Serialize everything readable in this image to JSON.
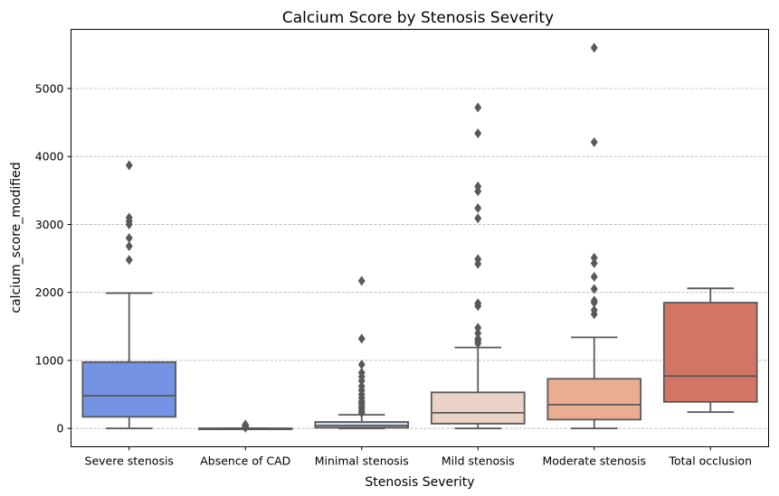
{
  "chart_data": {
    "type": "box",
    "title": "Calcium Score by Stenosis Severity",
    "xlabel": "Stenosis Severity",
    "ylabel": "calcium_score_modified",
    "ylim": [
      -270,
      5870
    ],
    "yticks": [
      0,
      1000,
      2000,
      3000,
      4000,
      5000
    ],
    "grid": "y-dashed",
    "categories": [
      "Severe stenosis",
      "Absence of CAD",
      "Minimal stenosis",
      "Mild stenosis",
      "Moderate stenosis",
      "Total occlusion"
    ],
    "colors": [
      "#7593e5",
      "#b7cdf3",
      "#cfd9e8",
      "#ead3c6",
      "#eaad92",
      "#d37564"
    ],
    "line_color": "#595959",
    "boxes": [
      {
        "category": "Severe stenosis",
        "whisker_low": 0,
        "q1": 170,
        "median": 480,
        "q3": 975,
        "whisker_high": 1990,
        "outliers": [
          2480,
          2680,
          2800,
          3000,
          3050,
          3100,
          3870
        ]
      },
      {
        "category": "Absence of CAD",
        "whisker_low": 0,
        "q1": 0,
        "median": 0,
        "q3": 0,
        "whisker_high": 0,
        "outliers": [
          10,
          20,
          30,
          45,
          55
        ]
      },
      {
        "category": "Minimal stenosis",
        "whisker_low": 0,
        "q1": 10,
        "median": 40,
        "q3": 95,
        "whisker_high": 200,
        "outliers": [
          230,
          260,
          300,
          330,
          370,
          400,
          450,
          500,
          560,
          620,
          700,
          760,
          820,
          940,
          1320,
          2170
        ]
      },
      {
        "category": "Mild stenosis",
        "whisker_low": 0,
        "q1": 70,
        "median": 230,
        "q3": 530,
        "whisker_high": 1190,
        "outliers": [
          1250,
          1290,
          1320,
          1400,
          1480,
          1800,
          1840,
          2420,
          2490,
          3090,
          3240,
          3490,
          3560,
          4340,
          4720
        ]
      },
      {
        "category": "Moderate stenosis",
        "whisker_low": 0,
        "q1": 130,
        "median": 350,
        "q3": 730,
        "whisker_high": 1340,
        "outliers": [
          1680,
          1740,
          1850,
          1880,
          2050,
          2230,
          2430,
          2510,
          4210,
          5600
        ]
      },
      {
        "category": "Total occlusion",
        "whisker_low": 240,
        "q1": 390,
        "median": 770,
        "q3": 1850,
        "whisker_high": 2060,
        "outliers": []
      }
    ]
  }
}
